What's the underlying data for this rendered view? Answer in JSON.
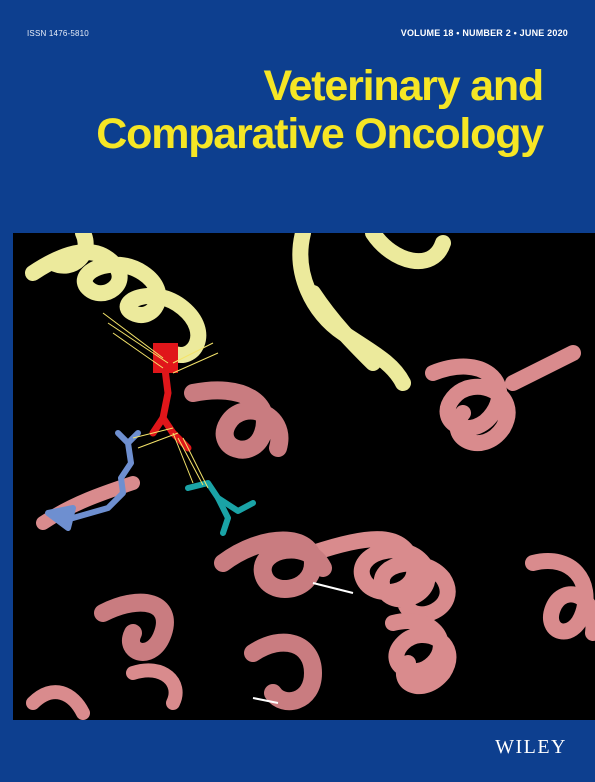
{
  "header": {
    "issn": "ISSN 1476-5810",
    "volume_info": "VOLUME 18 • NUMBER 2 • JUNE 2020"
  },
  "title": {
    "line1": "Veterinary and",
    "line2": "Comparative Oncology"
  },
  "cover_image": {
    "icon": "protein-ribbon-structure",
    "colors": {
      "helix_yellow": "#ecea9c",
      "helix_pink": "#d98b8d",
      "residue_red": "#e0161a",
      "residue_blue": "#6e8fd0",
      "residue_teal": "#1aa3a6",
      "contact_lines": "#f4e36a"
    }
  },
  "footer": {
    "publisher": "WILEY"
  },
  "colors": {
    "background": "#0d3f8f",
    "title": "#f6e625"
  }
}
